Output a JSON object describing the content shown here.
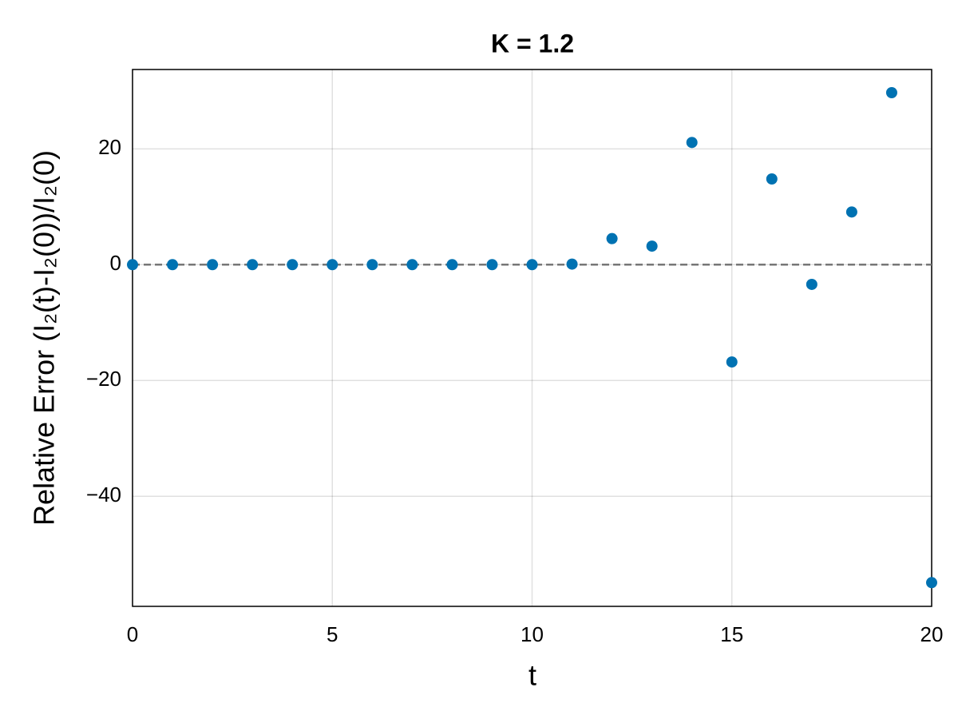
{
  "chart_data": {
    "type": "scatter",
    "title": "K = 1.2",
    "x_label": "t",
    "y_label": "Relative Error (I₂(t)-I₂(0))/I₂(0)",
    "x": [
      0,
      1,
      2,
      3,
      4,
      5,
      6,
      7,
      8,
      9,
      10,
      11,
      12,
      13,
      14,
      15,
      16,
      17,
      18,
      19,
      20
    ],
    "series": [
      {
        "color": "#0072b2",
        "values": [
          0,
          0,
          0,
          0,
          0,
          0,
          0,
          0,
          0,
          0,
          0,
          0.1,
          4.5,
          3.2,
          21.1,
          -16.8,
          14.8,
          -3.4,
          9.1,
          29.7,
          -54.9
        ]
      }
    ],
    "xlim": [
      0,
      20
    ],
    "ylim": [
      -59,
      33.7
    ],
    "xticks": [
      0,
      5,
      10,
      15,
      20
    ],
    "yticks": [
      {
        "value": -40,
        "label": "−40"
      },
      {
        "value": -20,
        "label": "−20"
      },
      0,
      20
    ],
    "reference_line": 0,
    "grid": true
  }
}
